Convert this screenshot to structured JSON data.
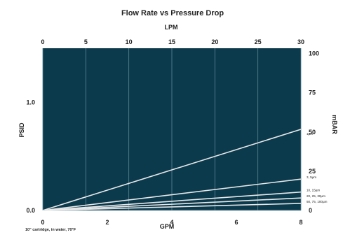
{
  "chart_data": {
    "type": "line",
    "title": "Flow Rate vs Pressure Drop",
    "top_axis": {
      "label": "LPM",
      "ticks": [
        "0",
        "5",
        "10",
        "15",
        "20",
        "25",
        "30"
      ],
      "range": [
        0,
        30
      ]
    },
    "bottom_axis": {
      "label": "GPM",
      "ticks": [
        "0",
        "2",
        "4",
        "6",
        "8"
      ],
      "range": [
        0,
        8
      ]
    },
    "left_axis": {
      "label": "PSID",
      "ticks": [
        "0.0",
        "1.0"
      ],
      "values": [
        0,
        1
      ],
      "range": [
        0,
        1.5
      ]
    },
    "right_axis": {
      "label": "mBAR",
      "ticks": [
        "0",
        "25",
        "50",
        "75",
        "100"
      ],
      "values": [
        0,
        25,
        50,
        75,
        100
      ],
      "range": [
        0,
        103.4
      ]
    },
    "grid": true,
    "plot_background": "#0c3a4d",
    "line_color": "#e8e8e8",
    "x": [
      0,
      8
    ],
    "series": [
      {
        "name": "1µm",
        "values": [
          0,
          0.75
        ]
      },
      {
        "name": "3, 5µm",
        "values": [
          0,
          0.29
        ]
      },
      {
        "name": "10, 15µm",
        "values": [
          0,
          0.17
        ]
      },
      {
        "name": "20, 25, 30µm",
        "values": [
          0,
          0.115
        ]
      },
      {
        "name": "50, 75, 100µm",
        "values": [
          0,
          0.065
        ]
      }
    ],
    "footnote": "10\" cartridge, in water, 70°F"
  }
}
